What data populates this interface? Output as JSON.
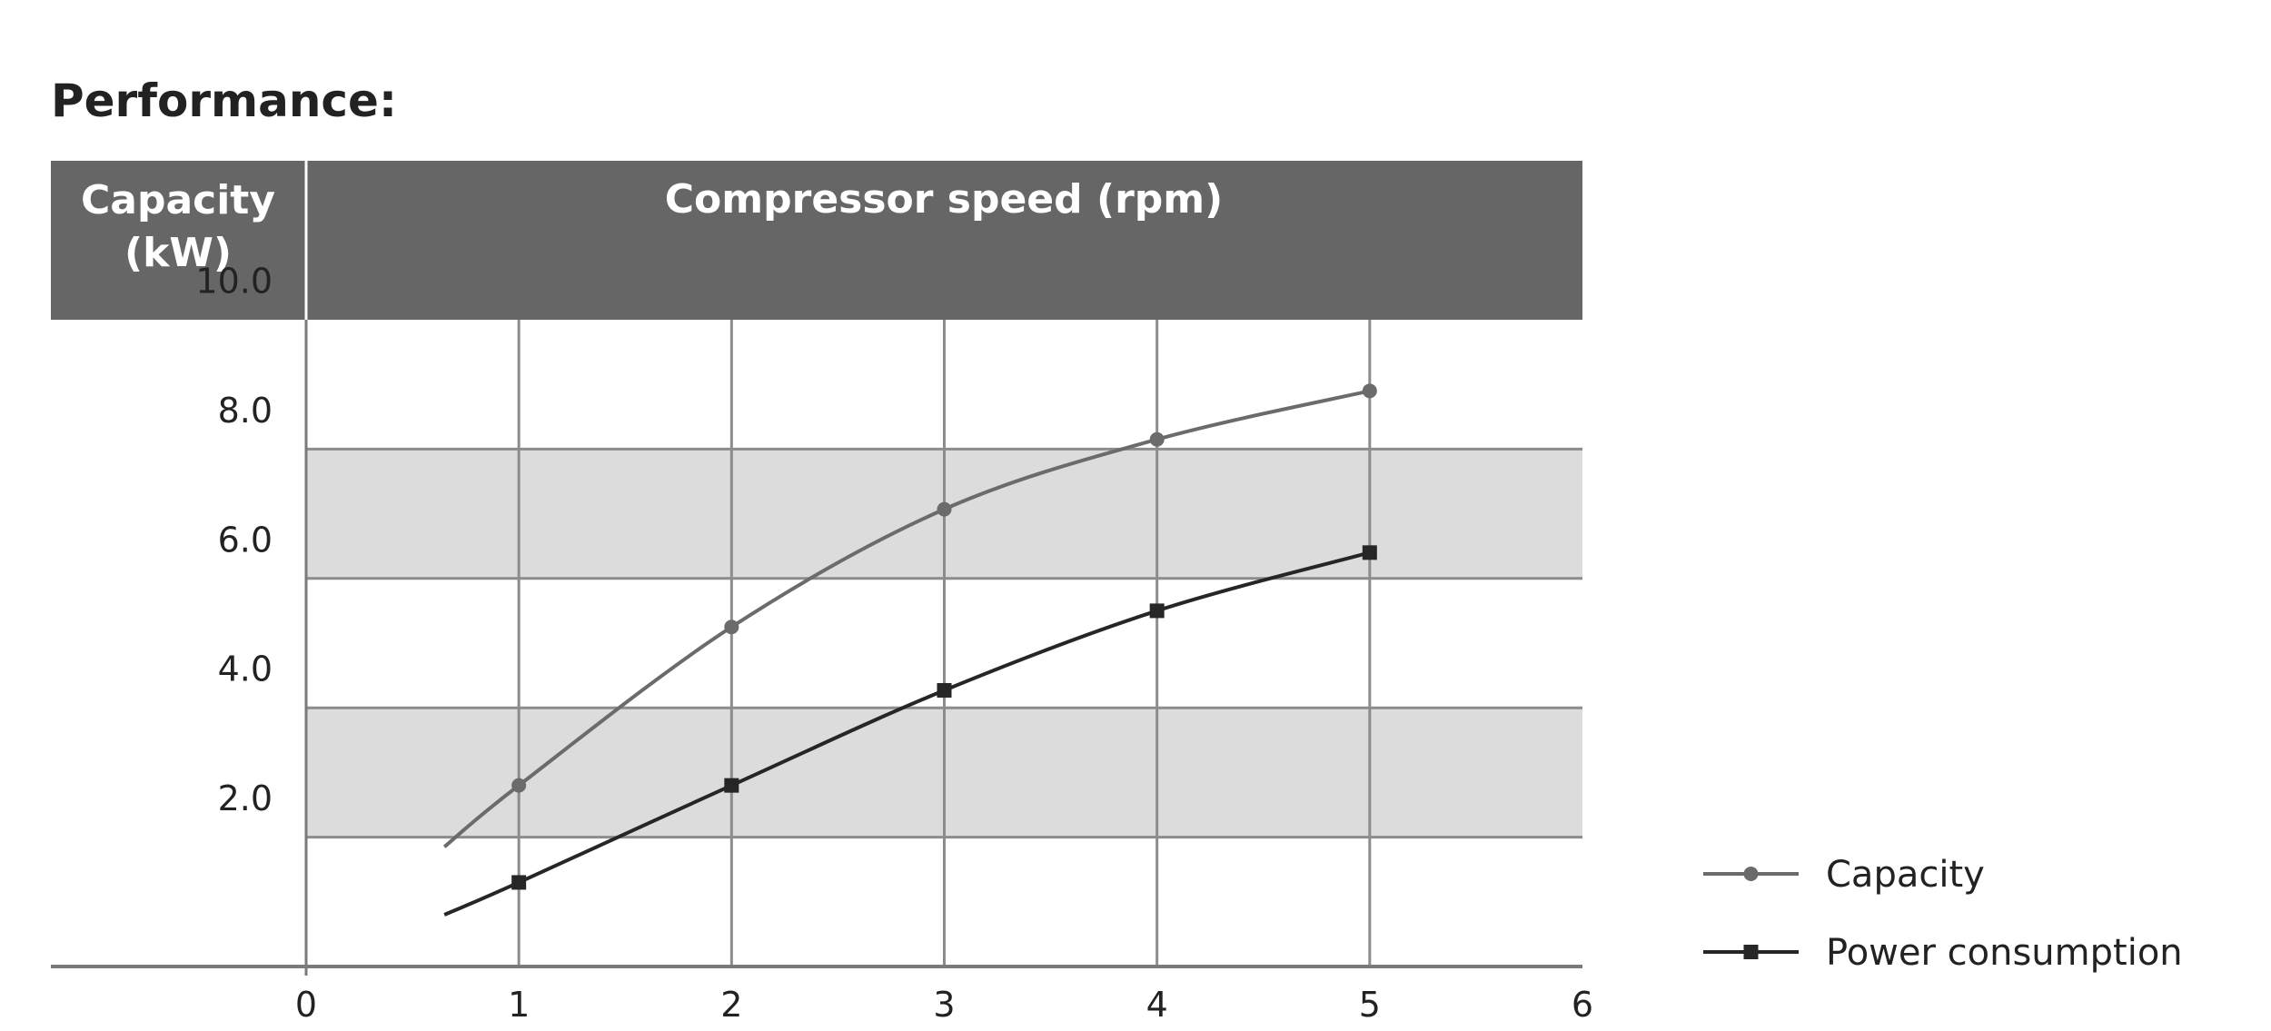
{
  "page_title": "Performance:",
  "chart_data": {
    "type": "line",
    "title": "",
    "ylabel_line1": "Capacity",
    "ylabel_line2": "(kW)",
    "xlabel": "Compressor speed (rpm)",
    "xlim": [
      0,
      6
    ],
    "ylim": [
      0,
      10
    ],
    "x_ticks": [
      "0",
      "1",
      "2",
      "3",
      "4",
      "5",
      "6"
    ],
    "y_ticks": [
      "2.0",
      "4.0",
      "6.0",
      "8.0",
      "10.0"
    ],
    "shaded_bands": [
      [
        2,
        4
      ],
      [
        6,
        8
      ]
    ],
    "grid": true,
    "legend_position": "bottom-right",
    "colors": {
      "header_bg": "#666666",
      "band": "#dcdcdc",
      "grid": "#8c8c8c",
      "axis": "#7a7a7a"
    },
    "series": [
      {
        "name": "Capacity",
        "color": "#6b6b6b",
        "marker": "circle",
        "x": [
          1,
          2,
          3,
          4,
          5
        ],
        "y": [
          2.8,
          5.25,
          7.07,
          8.15,
          8.9
        ],
        "curve_start": [
          0.65,
          1.85
        ]
      },
      {
        "name": "Power consumption",
        "color": "#262626",
        "marker": "square",
        "x": [
          1,
          2,
          3,
          4,
          5
        ],
        "y": [
          1.3,
          2.8,
          4.27,
          5.5,
          6.4
        ],
        "curve_start": [
          0.65,
          0.8
        ]
      }
    ]
  }
}
